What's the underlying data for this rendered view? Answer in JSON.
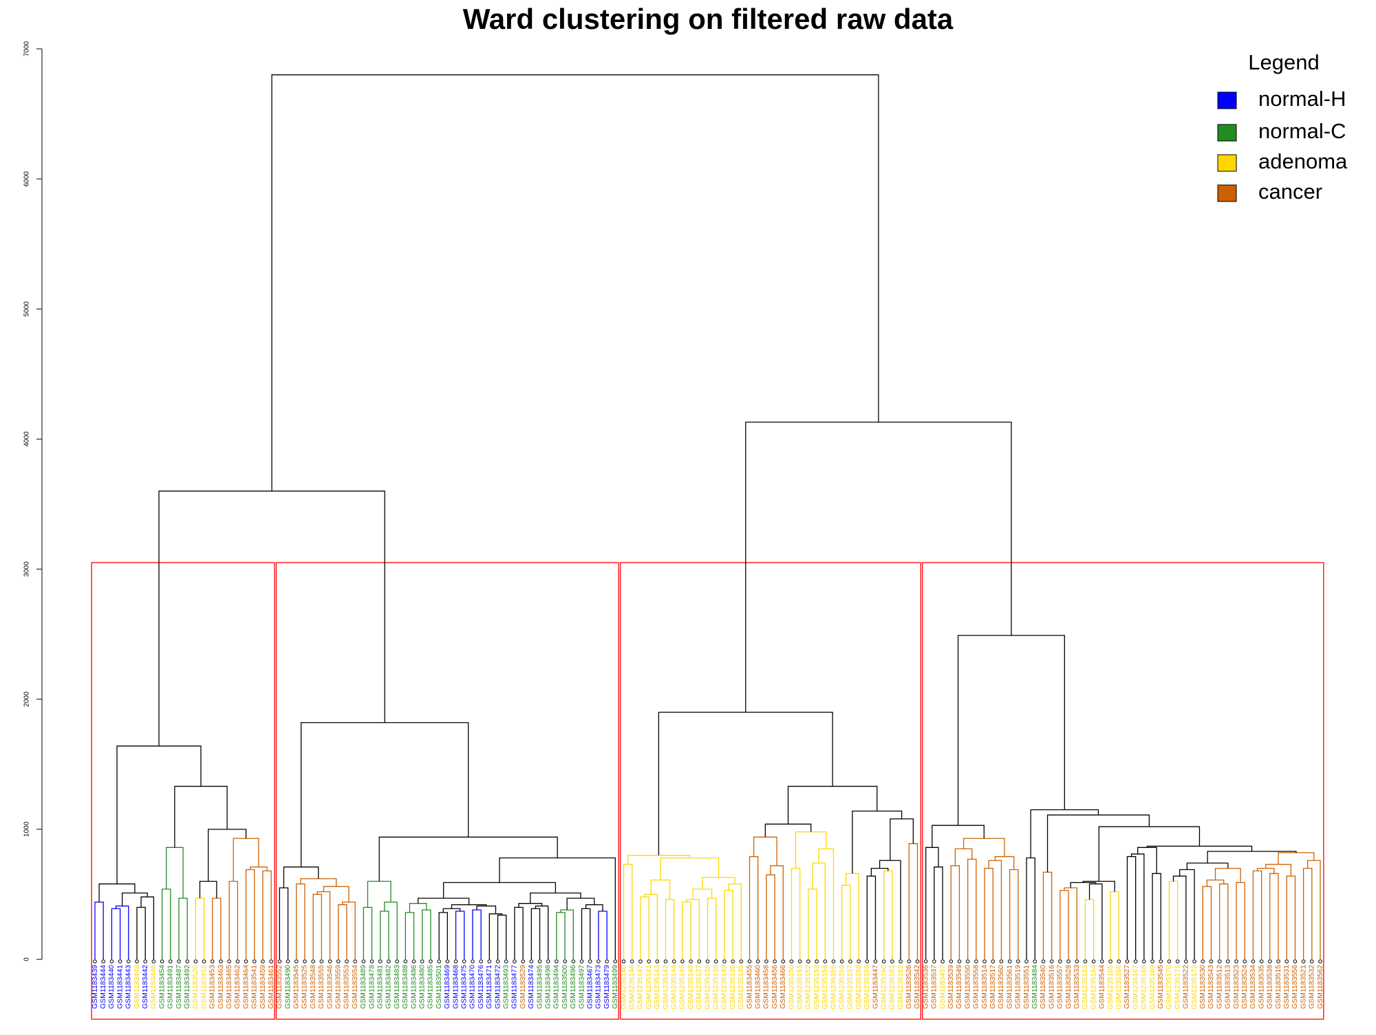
{
  "chart_data": {
    "type": "dendrogram",
    "title": "Ward clustering on filtered raw data",
    "ylim": [
      0,
      7000
    ],
    "yticks": [
      0,
      1000,
      2000,
      3000,
      4000,
      5000,
      6000,
      7000
    ],
    "legend": {
      "title": "Legend",
      "position": "top-right",
      "items": [
        {
          "name": "normal-H",
          "color": "#0000ff"
        },
        {
          "name": "normal-C",
          "color": "#228b22"
        },
        {
          "name": "adenoma",
          "color": "#ffd700"
        },
        {
          "name": "cancer",
          "color": "#cd6000"
        }
      ]
    },
    "box_height": 3050,
    "box_color": "#ff0000",
    "boxes": [
      [
        0,
        21
      ],
      [
        22,
        62
      ],
      [
        63,
        98
      ],
      [
        99,
        146
      ]
    ],
    "labels": [
      "GSM1183439",
      "GSM1183444",
      "GSM1183440",
      "GSM1183441",
      "GSM1183443",
      "GSM1183448",
      "GSM1183442",
      "GSM1183446",
      "GSM1183454",
      "GSM1183491",
      "GSM1183487",
      "GSM1183492",
      "GSM1183520",
      "GSM1183452",
      "GSM1183453",
      "GSM1183463",
      "GSM1183465",
      "GSM1183462",
      "GSM1183464",
      "GSM1183541",
      "GSM1183459",
      "GSM1183461",
      "GSM1183552",
      "GSM1183490",
      "GSM1183545",
      "GSM1183525",
      "GSM1183548",
      "GSM1183555",
      "GSM1183546",
      "GSM1183559",
      "GSM1183553",
      "GSM1183554",
      "GSM1183489",
      "GSM1183478",
      "GSM1183481",
      "GSM1183482",
      "GSM1183483",
      "GSM1183488",
      "GSM1183486",
      "GSM1183480",
      "GSM1183485",
      "GSM1183501",
      "GSM1183469",
      "GSM1183468",
      "GSM1183475",
      "GSM1183470",
      "GSM1183476",
      "GSM1183471",
      "GSM1183472",
      "GSM1183493",
      "GSM1183477",
      "GSM1183529",
      "GSM1183474",
      "GSM1183495",
      "GSM1183498",
      "GSM1183494",
      "GSM1183500",
      "GSM1183496",
      "GSM1183497",
      "GSM1183467",
      "GSM1183473",
      "GSM1183479",
      "GSM1183499",
      "GSM1235140",
      "GSM1235146",
      "GSM1235147",
      "GSM1235141",
      "GSM1235143",
      "GSM1235142",
      "GSM1235144",
      "GSM1235145",
      "GSM1235148",
      "GSM1235137",
      "GSM1235138",
      "GSM1235139",
      "GSM1235149",
      "GSM1235136",
      "GSM1235135",
      "GSM1183455",
      "GSM1183460",
      "GSM1183458",
      "GSM1183456",
      "GSM1183466",
      "GSM1235150",
      "GSM1235151",
      "GSM1235152",
      "GSM1235153",
      "GSM1235154",
      "GSM1235155",
      "GSM1235156",
      "GSM1235157",
      "GSM1235158",
      "GSM1235159",
      "GSM1183447",
      "GSM1235160",
      "GSM1235161",
      "GSM1235162",
      "GSM1183526",
      "GSM1183542",
      "GSM1183536",
      "GSM1183537",
      "GSM1183457",
      "GSM1183539",
      "GSM1183549",
      "GSM1183550",
      "GSM1183558",
      "GSM1183514",
      "GSM1183517",
      "GSM1183560",
      "GSM1183561",
      "GSM1183519",
      "GSM1183551",
      "GSM1183484",
      "GSM1183540",
      "GSM1183516",
      "GSM1183557",
      "GSM1183528",
      "GSM1183533",
      "GSM1235163",
      "GSM1235164",
      "GSM1183544",
      "GSM1235165",
      "GSM1235166",
      "GSM1183527",
      "GSM1235167",
      "GSM1235168",
      "GSM1235169",
      "GSM1183545",
      "GSM1235170",
      "GSM1235171",
      "GSM1183522",
      "GSM1235172",
      "GSM1183530",
      "GSM1183543",
      "GSM1183512",
      "GSM1183513",
      "GSM1183523",
      "GSM1183524",
      "GSM1183534",
      "GSM1183535",
      "GSM1183538",
      "GSM1183515",
      "GSM1183531",
      "GSM1183556",
      "GSM1183521",
      "GSM1183532",
      "GSM1183562"
    ],
    "groups": [
      "normal-H",
      "normal-H",
      "normal-H",
      "normal-H",
      "normal-H",
      "adenoma",
      "normal-H",
      "adenoma",
      "normal-C",
      "normal-C",
      "normal-C",
      "normal-C",
      "adenoma",
      "adenoma",
      "cancer",
      "cancer",
      "cancer",
      "cancer",
      "cancer",
      "cancer",
      "cancer",
      "cancer",
      "cancer",
      "normal-C",
      "cancer",
      "cancer",
      "cancer",
      "cancer",
      "cancer",
      "cancer",
      "cancer",
      "cancer",
      "normal-C",
      "normal-C",
      "normal-C",
      "normal-C",
      "normal-C",
      "normal-C",
      "normal-C",
      "normal-C",
      "normal-C",
      "normal-C",
      "normal-H",
      "normal-H",
      "normal-H",
      "normal-H",
      "normal-H",
      "normal-H",
      "normal-H",
      "normal-C",
      "normal-H",
      "cancer",
      "normal-H",
      "normal-C",
      "normal-C",
      "normal-C",
      "normal-C",
      "normal-C",
      "normal-C",
      "normal-H",
      "normal-H",
      "normal-H",
      "normal-C",
      "adenoma",
      "adenoma",
      "adenoma",
      "adenoma",
      "adenoma",
      "adenoma",
      "adenoma",
      "adenoma",
      "adenoma",
      "adenoma",
      "adenoma",
      "adenoma",
      "adenoma",
      "adenoma",
      "adenoma",
      "cancer",
      "cancer",
      "cancer",
      "cancer",
      "cancer",
      "adenoma",
      "adenoma",
      "adenoma",
      "adenoma",
      "adenoma",
      "adenoma",
      "adenoma",
      "adenoma",
      "adenoma",
      "adenoma",
      "cancer",
      "adenoma",
      "adenoma",
      "adenoma",
      "cancer",
      "cancer",
      "cancer",
      "cancer",
      "adenoma",
      "cancer",
      "cancer",
      "cancer",
      "cancer",
      "cancer",
      "cancer",
      "cancer",
      "cancer",
      "cancer",
      "cancer",
      "normal-C",
      "cancer",
      "cancer",
      "cancer",
      "cancer",
      "cancer",
      "adenoma",
      "adenoma",
      "cancer",
      "adenoma",
      "adenoma",
      "cancer",
      "adenoma",
      "adenoma",
      "adenoma",
      "cancer",
      "adenoma",
      "adenoma",
      "cancer",
      "adenoma",
      "cancer",
      "cancer",
      "cancer",
      "cancer",
      "cancer",
      "cancer",
      "cancer",
      "cancer",
      "cancer",
      "cancer",
      "cancer",
      "cancer",
      "cancer",
      "cancer",
      "cancer"
    ],
    "tree": [
      6800,
      [
        3600,
        [
          1640,
          [
            580,
            [
              440,
              0,
              1
            ],
            [
              510,
              [
                410,
                [
                  390,
                  2,
                  3
                ],
                4
              ],
              [
                480,
                [
                  400,
                  5,
                  6
                ],
                7
              ]
            ]
          ],
          [
            1330,
            [
              860,
              [
                540,
                8,
                9
              ],
              [
                470,
                10,
                11
              ]
            ],
            [
              1000,
              [
                600,
                [
                  470,
                  12,
                  13
                ],
                [
                  470,
                  14,
                  15
                ]
              ],
              [
                930,
                [
                  600,
                  16,
                  17
                ],
                [
                  710,
                  [
                    690,
                    18,
                    19
                  ],
                  [
                    680,
                    20,
                    21
                  ]
                ]
              ]
            ]
          ]
        ],
        [
          1820,
          [
            710,
            [
              550,
              22,
              23
            ],
            [
              620,
              [
                580,
                24,
                25
              ],
              [
                560,
                [
                  520,
                  [
                    500,
                    26,
                    27
                  ],
                  28
                ],
                [
                  440,
                  [
                    420,
                    29,
                    30
                  ],
                  31
                ]
              ]
            ]
          ],
          [
            940,
            [
              600,
              [
                400,
                32,
                33
              ],
              [
                440,
                [
                  370,
                  34,
                  35
                ],
                36
              ]
            ],
            [
              780,
              [
                590,
                [
                  470,
                  [
                    430,
                    [
                      360,
                      37,
                      38
                    ],
                    [
                      380,
                      39,
                      40
                    ]
                  ],
                  [
                    420,
                    [
                      390,
                      [
                        360,
                        41,
                        42
                      ],
                      [
                        370,
                        43,
                        44
                      ]
                    ],
                    [
                      410,
                      [
                        380,
                        45,
                        46
                      ],
                      [
                        350,
                        47,
                        [
                          340,
                          48,
                          49
                        ]
                      ]
                    ]
                  ]
                ],
                [
                  510,
                  [
                    430,
                    [
                      400,
                      50,
                      51
                    ],
                    [
                      410,
                      [
                        390,
                        52,
                        53
                      ],
                      54
                    ]
                  ],
                  [
                    470,
                    [
                      380,
                      [
                        360,
                        55,
                        56
                      ],
                      57
                    ],
                    [
                      420,
                      [
                        390,
                        58,
                        59
                      ],
                      [
                        370,
                        60,
                        61
                      ]
                    ]
                  ]
                ]
              ],
              62
            ]
          ]
        ]
      ],
      [
        4130,
        [
          1900,
          [
            800,
            [
              730,
              63,
              64
            ],
            [
              780,
              [
                610,
                [
                  500,
                  [
                    480,
                    65,
                    66
                  ],
                  67
                ],
                [
                  460,
                  68,
                  69
                ]
              ],
              [
                630,
                [
                  540,
                  [
                    460,
                    [
                      440,
                      70,
                      71
                    ],
                    72
                  ],
                  [
                    470,
                    73,
                    74
                  ]
                ],
                [
                  580,
                  [
                    530,
                    75,
                    76
                  ],
                  77
                ]
              ]
            ]
          ],
          [
            1330,
            [
              1040,
              [
                940,
                [
                  790,
                  78,
                  79
                ],
                [
                  720,
                  [
                    650,
                    80,
                    81
                  ],
                  82
                ]
              ],
              [
                980,
                [
                  700,
                  83,
                  84
                ],
                [
                  850,
                  [
                    740,
                    [
                      540,
                      85,
                      86
                    ],
                    87
                  ],
                  88
                ]
              ]
            ],
            [
              1140,
              [
                660,
                [
                  570,
                  89,
                  90
                ],
                91
              ],
              [
                1080,
                [
                  760,
                  [
                    700,
                    [
                      640,
                      92,
                      93
                    ],
                    [
                      680,
                      94,
                      95
                    ]
                  ],
                  96
                ],
                [
                  890,
                  97,
                  98
                ]
              ]
            ]
          ]
        ],
        [
          2490,
          [
            1030,
            [
              860,
              99,
              [
                710,
                100,
                101
              ]
            ],
            [
              930,
              [
                850,
                [
                  720,
                  102,
                  103
                ],
                [
                  770,
                  104,
                  105
                ]
              ],
              [
                790,
                [
                  760,
                  [
                    700,
                    106,
                    107
                  ],
                  108
                ],
                [
                  690,
                  109,
                  110
                ]
              ]
            ]
          ],
          [
            1150,
            [
              780,
              111,
              112
            ],
            [
              1110,
              [
                670,
                113,
                114
              ],
              [
                1020,
                [
                  600,
                  [
                    590,
                    [
                      550,
                      [
                        530,
                        115,
                        116
                      ],
                      117
                    ],
                    [
                      580,
                      [
                        460,
                        118,
                        119
                      ],
                      120
                    ]
                  ],
                  [
                    520,
                    121,
                    122
                  ]
                ],
                [
                  870,
                  [
                    860,
                    [
                      810,
                      [
                        790,
                        123,
                        124
                      ],
                      125
                    ],
                    [
                      660,
                      126,
                      127
                    ]
                  ],
                  [
                    830,
                    [
                      740,
                      [
                        690,
                        [
                          640,
                          [
                            600,
                            128,
                            129
                          ],
                          130
                        ],
                        131
                      ],
                      [
                        700,
                        [
                          610,
                          [
                            560,
                            132,
                            133
                          ],
                          [
                            580,
                            134,
                            135
                          ]
                        ],
                        [
                          590,
                          136,
                          137
                        ]
                      ]
                    ],
                    [
                      820,
                      [
                        730,
                        [
                          700,
                          [
                            680,
                            138,
                            139
                          ],
                          [
                            660,
                            140,
                            141
                          ]
                        ],
                        [
                          640,
                          142,
                          143
                        ]
                      ],
                      [
                        760,
                        [
                          700,
                          144,
                          145
                        ],
                        146
                      ]
                    ]
                  ]
                ]
              ]
            ]
          ]
        ]
      ]
    ]
  }
}
